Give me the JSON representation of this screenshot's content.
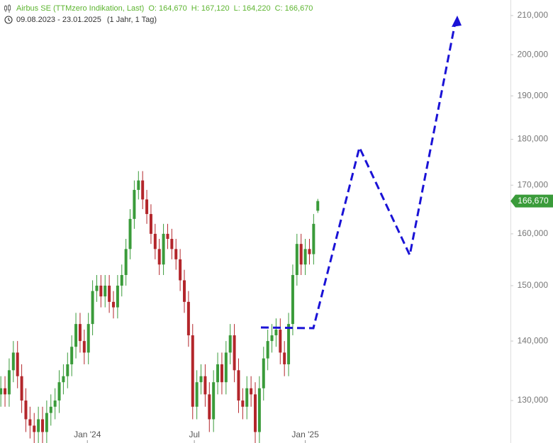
{
  "chart_data": {
    "type": "candlestick",
    "header": {
      "name": "Airbus SE (TTMzero Indikation, Last)",
      "quote": [
        "O: 164,670",
        "H: 167,120",
        "L: 164,220",
        "C: 166,670"
      ],
      "range": "09.08.2023 - 23.01.2025",
      "period": "(1 Jahr, 1 Tag)"
    },
    "up_color": "#3a9b3a",
    "down_color": "#b3262b",
    "title_color": "#5db530",
    "log_scale": true,
    "open": [
      131,
      132,
      131,
      135,
      138,
      134,
      130,
      127,
      126,
      125,
      127,
      125,
      128,
      129,
      130,
      133,
      134,
      136,
      139,
      143,
      140,
      138,
      143,
      149,
      150,
      148,
      150,
      147,
      146,
      150,
      152,
      157,
      163,
      169,
      171,
      167,
      164,
      160,
      157,
      154,
      160,
      159,
      157,
      155,
      151,
      147,
      141,
      129,
      133,
      134,
      131,
      127,
      133,
      136,
      133,
      138,
      141,
      135,
      130,
      129,
      132,
      131,
      125,
      132,
      137,
      140,
      141,
      142,
      138,
      136,
      143,
      152,
      158,
      154,
      157,
      156,
      164.67
    ],
    "high": [
      134,
      134,
      137,
      140,
      140,
      136,
      132,
      129,
      128,
      129,
      129,
      130,
      131,
      132,
      135,
      136,
      138,
      141,
      145,
      145,
      142,
      145,
      151,
      152,
      152,
      152,
      152,
      149,
      152,
      154,
      159,
      165,
      171,
      173,
      173,
      169,
      166,
      162,
      159,
      162,
      162,
      161,
      159,
      157,
      153,
      149,
      143,
      135,
      136,
      136,
      133,
      135,
      138,
      138,
      140,
      143,
      143,
      137,
      132,
      134,
      134,
      133,
      134,
      139,
      142,
      143,
      144,
      144,
      140,
      145,
      154,
      160,
      160,
      159,
      159,
      164,
      167.12
    ],
    "low": [
      129,
      129,
      129,
      133,
      132,
      128,
      125,
      124,
      123,
      123,
      123,
      123,
      126,
      127,
      128,
      131,
      132,
      134,
      137,
      138,
      136,
      136,
      141,
      147,
      146,
      146,
      145,
      144,
      144,
      148,
      150,
      155,
      161,
      167,
      165,
      162,
      158,
      155,
      152,
      152,
      157,
      155,
      153,
      149,
      145,
      139,
      127,
      127,
      131,
      129,
      125,
      125,
      131,
      131,
      131,
      136,
      133,
      128,
      127,
      127,
      129,
      123,
      123,
      130,
      135,
      138,
      139,
      136,
      134,
      134,
      141,
      150,
      152,
      152,
      154,
      154,
      164.22
    ],
    "close": [
      132,
      131,
      135,
      138,
      134,
      130,
      127,
      126,
      125,
      127,
      125,
      128,
      129,
      130,
      133,
      134,
      136,
      139,
      143,
      140,
      138,
      143,
      149,
      150,
      148,
      150,
      147,
      146,
      150,
      152,
      157,
      163,
      169,
      171,
      167,
      164,
      160,
      157,
      154,
      160,
      159,
      157,
      155,
      151,
      147,
      141,
      129,
      133,
      134,
      131,
      127,
      133,
      136,
      133,
      138,
      141,
      135,
      130,
      129,
      132,
      131,
      125,
      132,
      137,
      140,
      141,
      142,
      138,
      136,
      143,
      152,
      158,
      154,
      157,
      156,
      162,
      166.67
    ],
    "last_label": "166,670",
    "xlim": [
      -0.2,
      122.2
    ],
    "xticks": [
      {
        "value": 20.75,
        "label": "Jan '24"
      },
      {
        "value": 46.4,
        "label": "Jul"
      },
      {
        "value": 73,
        "label": "Jan '25"
      }
    ],
    "ylim": [
      123.3,
      214.1
    ],
    "yticks": [
      {
        "value": 130,
        "label": "130,000"
      },
      {
        "value": 140,
        "label": "140,000"
      },
      {
        "value": 150,
        "label": "150,000"
      },
      {
        "value": 160,
        "label": "160,000"
      },
      {
        "value": 170,
        "label": "170,000"
      },
      {
        "value": 180,
        "label": "180,000"
      },
      {
        "value": 190,
        "label": "190,000"
      },
      {
        "value": 200,
        "label": "200,000"
      },
      {
        "value": 210,
        "label": "210,000"
      }
    ]
  }
}
